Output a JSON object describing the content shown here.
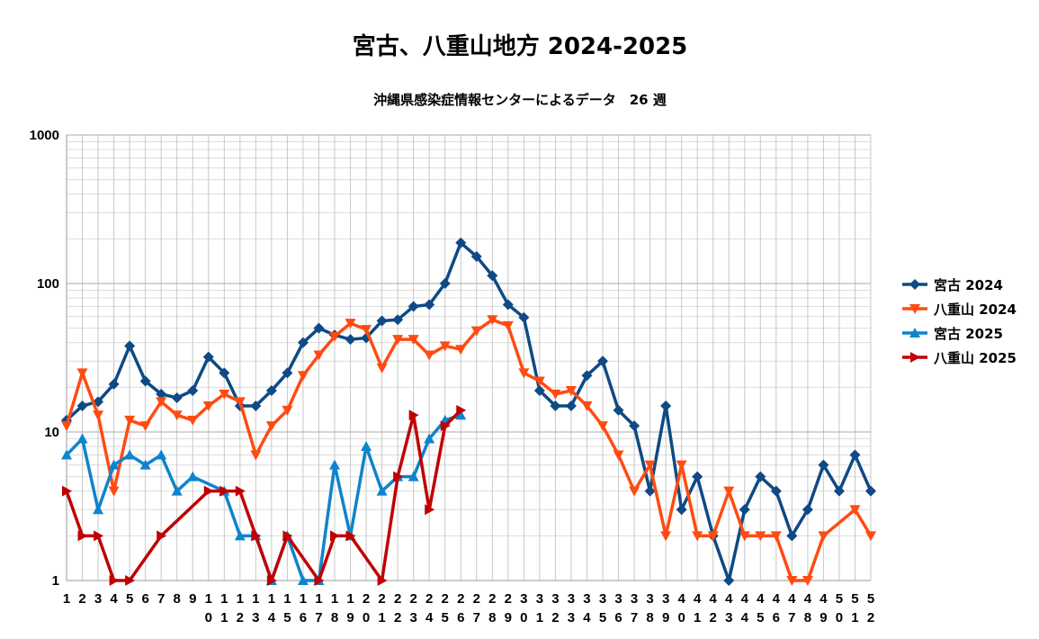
{
  "chart_data": {
    "type": "line",
    "title": "宮古、八重山地方 2024-2025",
    "subtitle": "沖縄県感染症情報センターによるデータ　26 週",
    "yscale": "log",
    "ylim": [
      1,
      1000
    ],
    "yticks": [
      "1",
      "10",
      "100",
      "1000"
    ],
    "categories": [
      "1",
      "2",
      "3",
      "4",
      "5",
      "6",
      "7",
      "8",
      "9",
      "10",
      "11",
      "12",
      "13",
      "14",
      "15",
      "16",
      "17",
      "18",
      "19",
      "20",
      "21",
      "22",
      "23",
      "24",
      "25",
      "26",
      "27",
      "28",
      "29",
      "30",
      "31",
      "32",
      "33",
      "34",
      "35",
      "36",
      "37",
      "38",
      "39",
      "40",
      "41",
      "42",
      "43",
      "44",
      "45",
      "46",
      "47",
      "48",
      "49",
      "50",
      "51",
      "52"
    ],
    "grid": true,
    "legend_position": "right",
    "series": [
      {
        "name": "宮古 2024",
        "color": "#0e4a84",
        "marker": "diamond",
        "values": [
          12,
          15,
          16,
          21,
          38,
          22,
          18,
          17,
          19,
          32,
          25,
          15,
          15,
          19,
          25,
          40,
          50,
          45,
          42,
          43,
          56,
          57,
          70,
          72,
          100,
          188,
          152,
          113,
          72,
          59,
          19,
          15,
          15,
          24,
          30,
          14,
          11,
          4,
          15,
          3,
          5,
          2,
          1,
          3,
          5,
          4,
          2,
          3,
          6,
          4,
          7,
          4
        ]
      },
      {
        "name": "八重山 2024",
        "color": "#ff4b12",
        "marker": "triangle-down",
        "values": [
          11,
          25,
          13,
          4,
          12,
          11,
          16,
          13,
          12,
          15,
          18,
          16,
          7,
          11,
          14,
          24,
          33,
          44,
          54,
          49,
          27,
          42,
          42,
          33,
          38,
          36,
          48,
          57,
          52,
          25,
          22,
          18,
          19,
          15,
          11,
          7,
          4,
          6,
          2,
          6,
          2,
          2,
          4,
          2,
          2,
          2,
          1,
          1,
          2,
          null,
          3,
          2
        ]
      },
      {
        "name": "宮古 2025",
        "color": "#0e84cc",
        "marker": "triangle-up",
        "values": [
          7,
          9,
          3,
          6,
          7,
          6,
          7,
          4,
          5,
          null,
          4,
          2,
          2,
          1,
          2,
          1,
          1,
          6,
          2,
          8,
          4,
          5,
          5,
          9,
          12,
          13,
          null,
          null,
          null,
          null,
          null,
          null,
          null,
          null,
          null,
          null,
          null,
          null,
          null,
          null,
          null,
          null,
          null,
          null,
          null,
          null,
          null,
          null,
          null,
          null,
          null,
          null
        ]
      },
      {
        "name": "八重山 2025",
        "color": "#c00000",
        "marker": "triangle-right",
        "values": [
          4,
          2,
          2,
          1,
          1,
          null,
          2,
          null,
          null,
          4,
          4,
          4,
          2,
          1,
          2,
          null,
          1,
          2,
          2,
          null,
          1,
          5,
          13,
          3,
          11,
          14,
          null,
          null,
          null,
          null,
          null,
          null,
          null,
          null,
          null,
          null,
          null,
          null,
          null,
          null,
          null,
          null,
          null,
          null,
          null,
          null,
          null,
          null,
          null,
          null,
          null,
          null
        ]
      }
    ]
  }
}
